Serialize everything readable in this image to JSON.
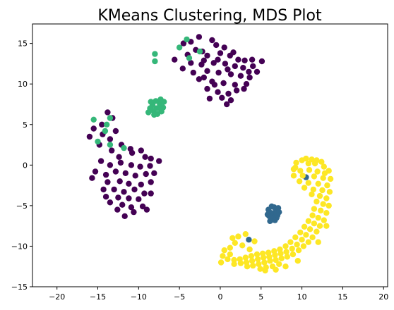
{
  "chart_data": {
    "type": "scatter",
    "title": "KMeans Clustering, MDS Plot",
    "xlabel": "",
    "ylabel": "",
    "xlim": [
      -23,
      20.5
    ],
    "ylim": [
      -15,
      17.4
    ],
    "xticks": [
      -20,
      -15,
      -10,
      -5,
      0,
      5,
      10,
      15,
      20
    ],
    "yticks": [
      -15,
      -10,
      -5,
      0,
      5,
      10,
      15
    ],
    "grid": false,
    "legend": "none",
    "colors": {
      "cluster_0": "#440154",
      "cluster_1": "#31688e",
      "cluster_2": "#35b779",
      "cluster_3": "#fde725"
    },
    "series": [
      {
        "color_key": "cluster_0",
        "points": [
          [
            -4.5,
            15.0
          ],
          [
            -3.6,
            15.2
          ],
          [
            -2.6,
            15.8
          ],
          [
            -1.0,
            15.4
          ],
          [
            -0.5,
            14.8
          ],
          [
            0.5,
            14.5
          ],
          [
            -3.0,
            14.2
          ],
          [
            -2.2,
            14.0
          ],
          [
            -4.0,
            13.6
          ],
          [
            -1.6,
            13.5
          ],
          [
            0.0,
            13.8
          ],
          [
            1.2,
            13.5
          ],
          [
            2.2,
            13.0
          ],
          [
            3.0,
            12.9
          ],
          [
            -5.6,
            13.0
          ],
          [
            -3.6,
            12.6
          ],
          [
            -2.3,
            12.4
          ],
          [
            -0.8,
            12.6
          ],
          [
            0.6,
            12.5
          ],
          [
            1.8,
            12.2
          ],
          [
            2.8,
            12.0
          ],
          [
            4.0,
            12.2
          ],
          [
            5.1,
            12.8
          ],
          [
            -4.6,
            11.9
          ],
          [
            -1.6,
            11.6
          ],
          [
            -0.2,
            11.4
          ],
          [
            1.3,
            11.2
          ],
          [
            2.5,
            11.0
          ],
          [
            3.6,
            10.8
          ],
          [
            -2.6,
            10.6
          ],
          [
            -1.0,
            10.3
          ],
          [
            0.4,
            10.1
          ],
          [
            1.8,
            9.9
          ],
          [
            3.2,
            10.0
          ],
          [
            -1.6,
            9.4
          ],
          [
            -0.3,
            9.0
          ],
          [
            1.0,
            8.8
          ],
          [
            2.0,
            9.2
          ],
          [
            0.2,
            8.3
          ],
          [
            1.3,
            8.0
          ],
          [
            -1.3,
            8.2
          ],
          [
            0.8,
            7.5
          ],
          [
            -2.0,
            12.9
          ],
          [
            3.9,
            13.0
          ],
          [
            4.5,
            11.5
          ],
          [
            -0.3,
            13.0
          ],
          [
            -3.3,
            11.4
          ],
          [
            2.9,
            9.4
          ],
          [
            -0.7,
            9.9
          ],
          [
            1.6,
            13.9
          ],
          [
            0.9,
            11.8
          ],
          [
            -2.0,
            10.8
          ],
          [
            3.5,
            11.5
          ],
          [
            -13.8,
            6.5
          ],
          [
            -13.2,
            5.8
          ],
          [
            -14.5,
            5.0
          ],
          [
            -15.5,
            4.5
          ],
          [
            -14.4,
            3.8
          ],
          [
            -12.8,
            4.2
          ],
          [
            -13.5,
            3.2
          ],
          [
            -16.0,
            3.5
          ],
          [
            -12.1,
            2.5
          ],
          [
            -11.0,
            2.0
          ],
          [
            -14.8,
            2.5
          ],
          [
            -13.3,
            1.8
          ],
          [
            -12.4,
            1.0
          ],
          [
            -10.8,
            1.5
          ],
          [
            -9.7,
            1.8
          ],
          [
            -9.2,
            1.0
          ],
          [
            -8.5,
            0.8
          ],
          [
            -7.5,
            0.5
          ],
          [
            -14.6,
            0.5
          ],
          [
            -13.5,
            0.0
          ],
          [
            -12.2,
            0.3
          ],
          [
            -10.9,
            0.0
          ],
          [
            -9.8,
            -0.2
          ],
          [
            -8.6,
            -0.1
          ],
          [
            -15.3,
            -0.8
          ],
          [
            -14.0,
            -1.2
          ],
          [
            -12.8,
            -0.8
          ],
          [
            -11.6,
            -1.0
          ],
          [
            -10.4,
            -1.3
          ],
          [
            -9.1,
            -1.1
          ],
          [
            -8.1,
            -1.0
          ],
          [
            -15.7,
            -1.6
          ],
          [
            -13.8,
            -2.1
          ],
          [
            -12.3,
            -2.0
          ],
          [
            -11.2,
            -2.3
          ],
          [
            -9.7,
            -2.4
          ],
          [
            -8.5,
            -2.1
          ],
          [
            -14.3,
            -3.0
          ],
          [
            -13.0,
            -3.0
          ],
          [
            -11.8,
            -3.3
          ],
          [
            -10.5,
            -3.0
          ],
          [
            -9.3,
            -3.5
          ],
          [
            -14.0,
            -3.9
          ],
          [
            -12.5,
            -4.0
          ],
          [
            -11.2,
            -4.1
          ],
          [
            -10.0,
            -4.2
          ],
          [
            -8.5,
            -3.5
          ],
          [
            -13.5,
            -4.6
          ],
          [
            -12.0,
            -4.9
          ],
          [
            -10.9,
            -5.2
          ],
          [
            -9.5,
            -5.1
          ],
          [
            -12.6,
            -5.5
          ],
          [
            -11.7,
            -6.3
          ],
          [
            -10.6,
            -5.8
          ],
          [
            -9.0,
            -5.5
          ]
        ]
      },
      {
        "color_key": "cluster_1",
        "points": [
          [
            6.5,
            -6.0
          ],
          [
            6.8,
            -5.6
          ],
          [
            6.2,
            -5.9
          ],
          [
            6.0,
            -6.3
          ],
          [
            7.0,
            -6.2
          ],
          [
            6.6,
            -5.2
          ],
          [
            5.9,
            -5.5
          ],
          [
            7.2,
            -5.8
          ],
          [
            6.4,
            -6.6
          ],
          [
            6.9,
            -6.5
          ],
          [
            6.1,
            -6.9
          ],
          [
            5.8,
            -6.1
          ],
          [
            7.1,
            -5.3
          ],
          [
            6.3,
            -5.1
          ],
          [
            6.7,
            -6.8
          ],
          [
            3.5,
            -9.2
          ],
          [
            10.5,
            -1.5
          ]
        ]
      },
      {
        "color_key": "cluster_2",
        "points": [
          [
            -7.8,
            7.0
          ],
          [
            -8.3,
            7.4
          ],
          [
            -7.4,
            7.5
          ],
          [
            -8.2,
            6.7
          ],
          [
            -7.2,
            6.6
          ],
          [
            -8.6,
            7.0
          ],
          [
            -7.0,
            7.1
          ],
          [
            -7.9,
            7.9
          ],
          [
            -7.7,
            6.3
          ],
          [
            -8.8,
            6.5
          ],
          [
            -6.9,
            7.8
          ],
          [
            -8.5,
            7.8
          ],
          [
            -7.3,
            8.1
          ],
          [
            -8.1,
            6.2
          ],
          [
            -7.5,
            7.0
          ],
          [
            -4.1,
            15.5
          ],
          [
            -5.0,
            14.5
          ],
          [
            -8.0,
            13.7
          ],
          [
            -8.0,
            12.8
          ],
          [
            -3.8,
            13.2
          ],
          [
            -2.5,
            14.0
          ],
          [
            -15.5,
            5.6
          ],
          [
            -13.5,
            5.8
          ],
          [
            -13.9,
            5.0
          ],
          [
            -14.1,
            4.2
          ],
          [
            -15.0,
            2.9
          ],
          [
            -13.5,
            2.5
          ],
          [
            -11.8,
            2.1
          ]
        ]
      },
      {
        "color_key": "cluster_3",
        "points": [
          [
            10.0,
            0.6
          ],
          [
            10.5,
            0.8
          ],
          [
            11.2,
            0.7
          ],
          [
            11.8,
            0.6
          ],
          [
            12.4,
            0.4
          ],
          [
            10.8,
            0.2
          ],
          [
            11.6,
            0.2
          ],
          [
            12.7,
            -0.2
          ],
          [
            9.2,
            -0.3
          ],
          [
            9.8,
            -0.7
          ],
          [
            10.9,
            -0.6
          ],
          [
            11.9,
            -0.8
          ],
          [
            12.8,
            -1.0
          ],
          [
            13.3,
            -0.7
          ],
          [
            9.0,
            -1.3
          ],
          [
            10.1,
            -1.3
          ],
          [
            11.5,
            -1.4
          ],
          [
            12.6,
            -1.6
          ],
          [
            13.5,
            -1.7
          ],
          [
            9.7,
            -2.0
          ],
          [
            10.8,
            -2.2
          ],
          [
            12.0,
            -2.3
          ],
          [
            13.1,
            -2.5
          ],
          [
            10.3,
            -2.8
          ],
          [
            11.4,
            -3.0
          ],
          [
            12.5,
            -3.1
          ],
          [
            13.4,
            -3.3
          ],
          [
            11.2,
            -3.6
          ],
          [
            12.2,
            -3.8
          ],
          [
            13.0,
            -4.1
          ],
          [
            11.8,
            -4.5
          ],
          [
            12.6,
            -4.8
          ],
          [
            13.3,
            -5.0
          ],
          [
            11.5,
            -5.4
          ],
          [
            12.3,
            -5.6
          ],
          [
            13.0,
            -5.9
          ],
          [
            11.3,
            -6.2
          ],
          [
            12.0,
            -6.5
          ],
          [
            12.7,
            -6.8
          ],
          [
            10.8,
            -6.9
          ],
          [
            11.5,
            -7.2
          ],
          [
            12.2,
            -7.5
          ],
          [
            10.3,
            -7.6
          ],
          [
            11.0,
            -7.9
          ],
          [
            11.8,
            -8.2
          ],
          [
            9.8,
            -8.3
          ],
          [
            10.5,
            -8.6
          ],
          [
            11.3,
            -8.9
          ],
          [
            9.2,
            -8.9
          ],
          [
            10.0,
            -9.2
          ],
          [
            10.8,
            -9.5
          ],
          [
            8.6,
            -9.5
          ],
          [
            9.4,
            -9.8
          ],
          [
            10.2,
            -10.0
          ],
          [
            8.0,
            -10.0
          ],
          [
            8.8,
            -10.3
          ],
          [
            9.6,
            -10.5
          ],
          [
            7.3,
            -10.4
          ],
          [
            8.1,
            -10.7
          ],
          [
            8.9,
            -11.0
          ],
          [
            6.6,
            -10.6
          ],
          [
            7.4,
            -10.9
          ],
          [
            8.2,
            -11.3
          ],
          [
            5.9,
            -10.8
          ],
          [
            6.7,
            -11.1
          ],
          [
            7.5,
            -11.5
          ],
          [
            5.2,
            -10.9
          ],
          [
            6.0,
            -11.3
          ],
          [
            6.8,
            -11.7
          ],
          [
            4.5,
            -11.0
          ],
          [
            5.3,
            -11.4
          ],
          [
            6.1,
            -11.8
          ],
          [
            7.2,
            -12.2
          ],
          [
            3.8,
            -11.2
          ],
          [
            4.6,
            -11.6
          ],
          [
            5.4,
            -12.0
          ],
          [
            6.4,
            -12.5
          ],
          [
            3.1,
            -11.4
          ],
          [
            3.9,
            -11.8
          ],
          [
            4.7,
            -12.2
          ],
          [
            5.6,
            -12.6
          ],
          [
            2.4,
            -11.6
          ],
          [
            3.2,
            -12.0
          ],
          [
            4.0,
            -12.4
          ],
          [
            4.9,
            -12.8
          ],
          [
            1.7,
            -11.7
          ],
          [
            2.5,
            -12.1
          ],
          [
            3.3,
            -12.5
          ],
          [
            0.9,
            -11.6
          ],
          [
            1.7,
            -12.2
          ],
          [
            0.3,
            -11.2
          ],
          [
            0.1,
            -12.0
          ],
          [
            0.5,
            -10.5
          ],
          [
            1.2,
            -10.2
          ],
          [
            1.8,
            -9.6
          ],
          [
            2.2,
            -8.8
          ],
          [
            3.1,
            -8.5
          ],
          [
            1.5,
            -9.0
          ],
          [
            4.2,
            -9.4
          ],
          [
            2.7,
            -9.9
          ],
          [
            3.6,
            -10.4
          ],
          [
            1.2,
            -11.0
          ],
          [
            8.0,
            -12.5
          ],
          [
            6.8,
            -12.9
          ],
          [
            5.5,
            -13.0
          ],
          [
            9.5,
            -11.8
          ],
          [
            12.0,
            -9.5
          ],
          [
            13.0,
            -7.5
          ],
          [
            9.0,
            -0.5
          ],
          [
            9.3,
            0.3
          ]
        ]
      }
    ]
  }
}
